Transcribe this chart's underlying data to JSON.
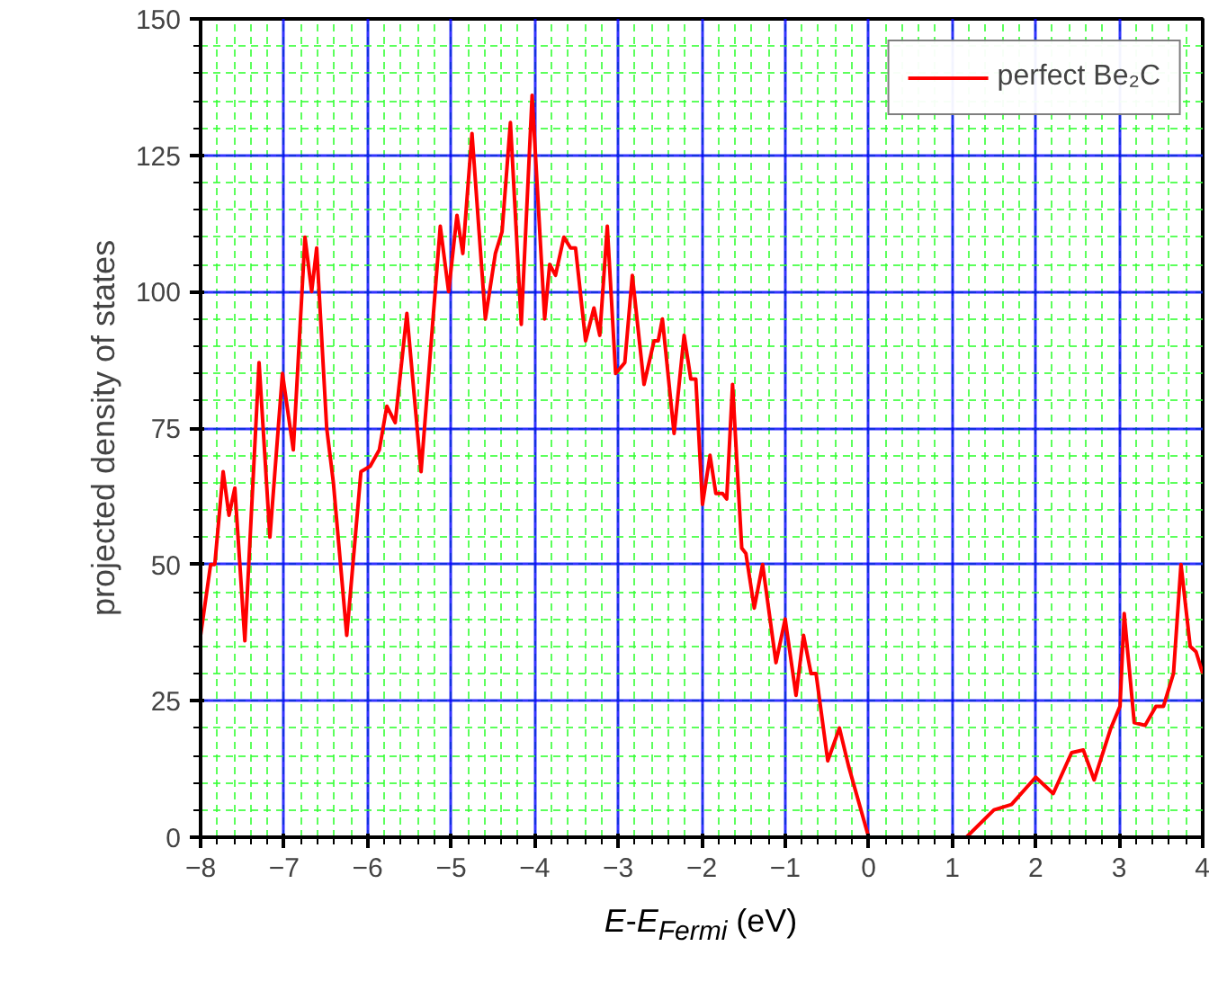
{
  "chart_data": {
    "type": "line",
    "xlabel": "E-E$_{Fermi}$ (eV)",
    "ylabel": "projected density of states",
    "xlim": [
      -8,
      4
    ],
    "ylim": [
      0,
      150
    ],
    "xticks": [
      -8,
      -7,
      -6,
      -5,
      -4,
      -3,
      -2,
      -1,
      0,
      1,
      2,
      3,
      4
    ],
    "yticks": [
      0,
      25,
      50,
      75,
      100,
      125,
      150
    ],
    "grid": true,
    "legend": "top right",
    "line_style": "solid",
    "marker": "none",
    "series": [
      {
        "name": "perfect Be₂C",
        "color": "#ff0000",
        "x": [
          -8,
          -7.88,
          -7.83,
          -7.73,
          -7.66,
          -7.59,
          -7.47,
          -7.3,
          -7.17,
          -7.02,
          -6.89,
          -6.75,
          -6.67,
          -6.61,
          -6.49,
          -6.41,
          -6.25,
          -6.08,
          -5.97,
          -5.86,
          -5.77,
          -5.67,
          -5.53,
          -5.36,
          -5.13,
          -5.03,
          -4.93,
          -4.86,
          -4.75,
          -4.59,
          -4.47,
          -4.39,
          -4.29,
          -4.16,
          -4.03,
          -3.88,
          -3.82,
          -3.75,
          -3.65,
          -3.57,
          -3.51,
          -3.39,
          -3.29,
          -3.22,
          -3.13,
          -3.03,
          -2.92,
          -2.83,
          -2.69,
          -2.57,
          -2.52,
          -2.47,
          -2.33,
          -2.21,
          -2.13,
          -2.07,
          -1.99,
          -1.9,
          -1.83,
          -1.75,
          -1.7,
          -1.63,
          -1.52,
          -1.47,
          -1.37,
          -1.27,
          -1.11,
          -1.0,
          -0.87,
          -0.78,
          -0.69,
          -0.63,
          -0.49,
          -0.35,
          -0.24,
          0.0,
          1.17,
          1.5,
          1.71,
          2.0,
          2.21,
          2.43,
          2.57,
          2.7,
          2.9,
          3.01,
          3.06,
          3.18,
          3.31,
          3.44,
          3.53,
          3.65,
          3.74,
          3.85,
          3.92,
          4.0
        ],
        "values": [
          37,
          50,
          50,
          67,
          59,
          64,
          36,
          87,
          55,
          85,
          71,
          110,
          100,
          108,
          75,
          65,
          37,
          67,
          68,
          71,
          79,
          76,
          96,
          67,
          112,
          100,
          114,
          107,
          129,
          95,
          107,
          111,
          131,
          94,
          136,
          95,
          105,
          103,
          110,
          108,
          108,
          91,
          97,
          92,
          112,
          85,
          87,
          103,
          83,
          91,
          91,
          95,
          74,
          92,
          84,
          84,
          61,
          70,
          63,
          63,
          62,
          83,
          53,
          52,
          42,
          50,
          32,
          40,
          26,
          37,
          30,
          30,
          14,
          20,
          13,
          0,
          0,
          5,
          6,
          11,
          8,
          15.5,
          16,
          10.5,
          20,
          24,
          41,
          21,
          20.5,
          24,
          24,
          30,
          50,
          35,
          34,
          30
        ]
      }
    ]
  }
}
